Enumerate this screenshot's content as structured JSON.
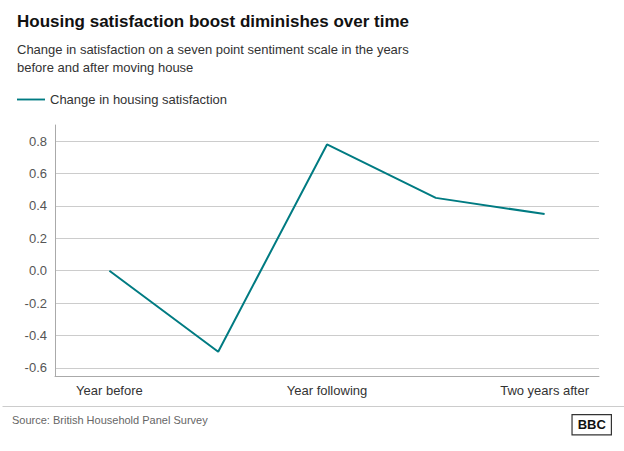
{
  "chart_data": {
    "type": "line",
    "title": "Housing satisfaction boost diminishes over time",
    "subtitle": "Change in satisfaction on a seven point sentiment scale in the years\nbefore and after moving house",
    "categories": [
      "Year before",
      null,
      "Year following",
      null,
      "Two years after"
    ],
    "series": [
      {
        "name": "Change in housing satisfaction",
        "color": "#007B82",
        "values": [
          0.0,
          -0.5,
          0.78,
          0.45,
          0.35
        ]
      }
    ],
    "ylim": [
      -0.65,
      0.9
    ],
    "yticks": [
      -0.6,
      -0.4,
      -0.2,
      {
        "value": 0.0,
        "label": "0.0"
      },
      0.2,
      0.4,
      0.6,
      0.8
    ],
    "grid": true,
    "legend": "top left",
    "annotations": [
      "Source: British Household Panel Survey",
      "BBC"
    ]
  }
}
